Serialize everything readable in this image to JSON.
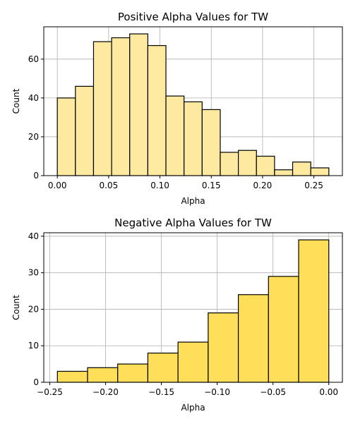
{
  "chart_data": [
    {
      "type": "bar",
      "title": "Positive Alpha Values for TW",
      "xlabel": "Alpha",
      "ylabel": "Count",
      "bin_edges": [
        0.0,
        0.01764,
        0.03528,
        0.05292,
        0.07056,
        0.0882,
        0.10584,
        0.12348,
        0.14112,
        0.15876,
        0.1764,
        0.19404,
        0.21168,
        0.22932,
        0.24696,
        0.2646
      ],
      "values": [
        40,
        46,
        69,
        71,
        73,
        67,
        41,
        38,
        34,
        12,
        13,
        10,
        3,
        7,
        4
      ],
      "xlim": [
        -0.0132,
        0.2778
      ],
      "ylim": [
        0,
        76.65
      ],
      "x_ticks": [
        0.0,
        0.05,
        0.1,
        0.15,
        0.2,
        0.25
      ],
      "x_tick_labels": [
        "0.00",
        "0.05",
        "0.10",
        "0.15",
        "0.20",
        "0.25"
      ],
      "y_ticks": [
        0,
        20,
        40,
        60
      ],
      "y_tick_labels": [
        "0",
        "20",
        "40",
        "60"
      ],
      "bar_color": "#fdeaa0",
      "edge_color": "#000000",
      "grid": true
    },
    {
      "type": "bar",
      "title": "Negative Alpha Values for TW",
      "xlabel": "Alpha",
      "ylabel": "Count",
      "bin_edges": [
        -0.2432,
        -0.21617,
        -0.18915,
        -0.16213,
        -0.1351,
        -0.10808,
        -0.08106,
        -0.05403,
        -0.02701,
        0.0
      ],
      "values": [
        3,
        4,
        5,
        8,
        11,
        19,
        24,
        29,
        39
      ],
      "xlim": [
        -0.2554,
        0.0122
      ],
      "ylim": [
        0,
        40.95
      ],
      "x_ticks": [
        -0.25,
        -0.2,
        -0.15,
        -0.1,
        -0.05,
        0.0
      ],
      "x_tick_labels": [
        "−0.25",
        "−0.20",
        "−0.15",
        "−0.10",
        "−0.05",
        "0.00"
      ],
      "y_ticks": [
        0,
        10,
        20,
        30,
        40
      ],
      "y_tick_labels": [
        "0",
        "10",
        "20",
        "30",
        "40"
      ],
      "bar_color": "#ffdf5a",
      "edge_color": "#000000",
      "grid": true
    }
  ]
}
